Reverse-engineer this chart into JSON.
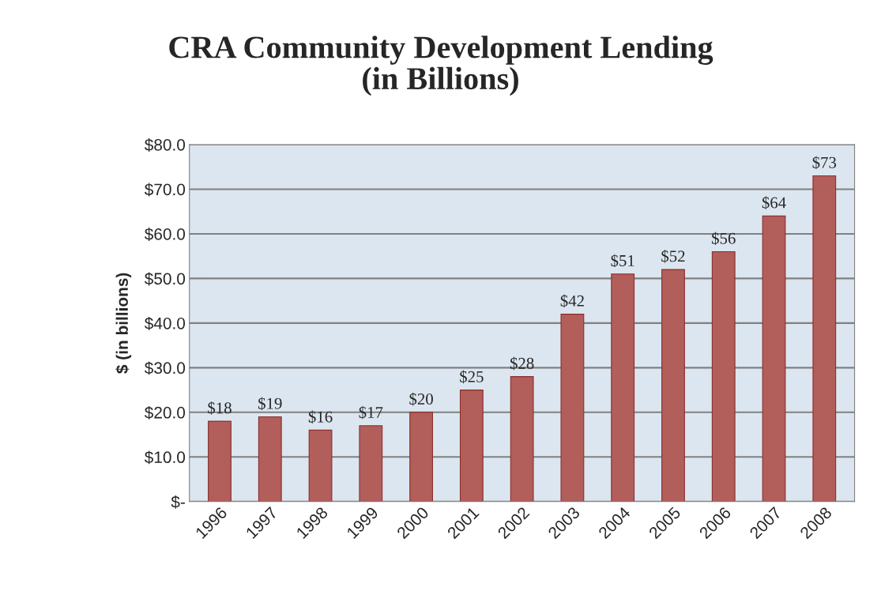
{
  "chart_data": {
    "type": "bar",
    "title": "CRA Community Development Lending\n(in Billions)",
    "ylabel": "$ (in billions)",
    "categories": [
      "1996",
      "1997",
      "1998",
      "1999",
      "2000",
      "2001",
      "2002",
      "2003",
      "2004",
      "2005",
      "2006",
      "2007",
      "2008"
    ],
    "values": [
      18,
      19,
      16,
      17,
      20,
      25,
      28,
      42,
      51,
      52,
      56,
      64,
      73
    ],
    "value_labels": [
      "$18",
      "$19",
      "$16",
      "$17",
      "$20",
      "$25",
      "$28",
      "$42",
      "$51",
      "$52",
      "$56",
      "$64",
      "$73"
    ],
    "color": "#c0504d",
    "ylim": [
      0,
      80
    ],
    "yticks": [
      {
        "value": 0,
        "label": "$-"
      },
      {
        "value": 10,
        "label": "$10.0"
      },
      {
        "value": 20,
        "label": "$20.0"
      },
      {
        "value": 30,
        "label": "$30.0"
      },
      {
        "value": 40,
        "label": "$40.0"
      },
      {
        "value": 50,
        "label": "$50.0"
      },
      {
        "value": 60,
        "label": "$60.0"
      },
      {
        "value": 70,
        "label": "$70.0"
      },
      {
        "value": 80,
        "label": "$80.0"
      }
    ],
    "grid": "y",
    "legend": false
  }
}
